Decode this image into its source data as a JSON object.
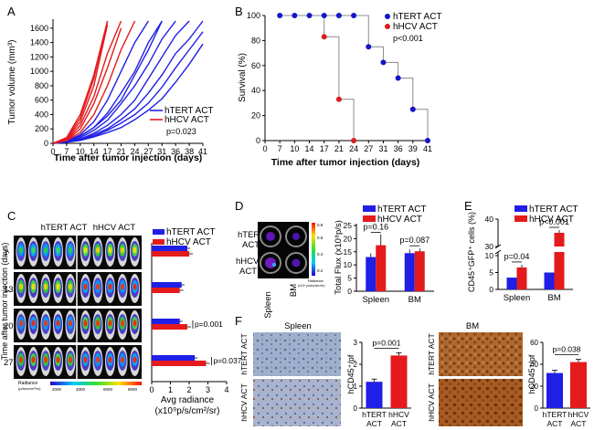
{
  "colors": {
    "blue": "#1f1fe6",
    "red": "#e41a1c",
    "survival_blue": "#1414c8",
    "survival_red": "#d81e1e",
    "axis": "#000000",
    "survival_line": "#8c8c8c"
  },
  "panels": {
    "a": "A",
    "b": "B",
    "c": "C",
    "d": "D",
    "e": "E",
    "f": "F"
  },
  "chart_data": [
    {
      "panel": "A",
      "type": "line",
      "xlabel": "Time after tumor injection (days)",
      "ylabel": "Tumor volume (mm³)",
      "xticks": [
        "0",
        "7",
        "10",
        "14",
        "17",
        "21",
        "24",
        "27",
        "31",
        "36",
        "38",
        "41"
      ],
      "yticks": [
        "0",
        "200",
        "400",
        "600",
        "800",
        "1000",
        "1200",
        "1400",
        "1600"
      ],
      "ylim": [
        0,
        1700
      ],
      "legend": [
        "hTERT ACT",
        "hHCV ACT"
      ],
      "annotation": "p=0.023",
      "series": [
        {
          "name": "hTERT ACT",
          "x": [
            0,
            7,
            10,
            14,
            17,
            21,
            24,
            27
          ],
          "values": [
            0,
            30,
            120,
            300,
            600,
            1000,
            1400,
            1700
          ]
        },
        {
          "name": "hTERT ACT",
          "x": [
            0,
            7,
            10,
            14,
            17,
            21,
            24,
            27,
            31
          ],
          "values": [
            0,
            25,
            100,
            220,
            420,
            700,
            1000,
            1400,
            1700
          ]
        },
        {
          "name": "hTERT ACT",
          "x": [
            0,
            7,
            10,
            14,
            17,
            21,
            24,
            27,
            31,
            36
          ],
          "values": [
            0,
            20,
            80,
            180,
            320,
            550,
            800,
            1100,
            1450,
            1700
          ]
        },
        {
          "name": "hTERT ACT",
          "x": [
            0,
            7,
            10,
            14,
            17,
            21,
            24,
            27,
            31
          ],
          "values": [
            0,
            30,
            100,
            220,
            380,
            600,
            950,
            1300,
            1700
          ]
        },
        {
          "name": "hTERT ACT",
          "x": [
            0,
            7,
            10,
            14,
            17,
            21,
            24,
            27,
            31,
            36,
            38
          ],
          "values": [
            0,
            20,
            60,
            140,
            250,
            400,
            600,
            900,
            1200,
            1500,
            1700
          ]
        },
        {
          "name": "hTERT ACT",
          "x": [
            0,
            7,
            10,
            14,
            17,
            21,
            24,
            27,
            31,
            36,
            38,
            41
          ],
          "values": [
            0,
            15,
            50,
            120,
            200,
            330,
            480,
            700,
            950,
            1250,
            1450,
            1700
          ]
        },
        {
          "name": "hTERT ACT",
          "x": [
            0,
            7,
            10,
            14,
            17,
            21,
            24,
            27,
            31,
            36,
            38,
            41
          ],
          "values": [
            0,
            20,
            60,
            100,
            180,
            280,
            400,
            560,
            780,
            1050,
            1300,
            1550
          ]
        },
        {
          "name": "hTERT ACT",
          "x": [
            0,
            7,
            10,
            14,
            17,
            21,
            24,
            27,
            31,
            36,
            38,
            41
          ],
          "values": [
            0,
            15,
            40,
            90,
            150,
            220,
            330,
            460,
            620,
            850,
            1100,
            1380
          ]
        },
        {
          "name": "hHCV ACT",
          "x": [
            0,
            7,
            10,
            14,
            17
          ],
          "values": [
            0,
            80,
            400,
            950,
            1700
          ]
        },
        {
          "name": "hHCV ACT",
          "x": [
            0,
            7,
            10,
            14,
            17
          ],
          "values": [
            0,
            60,
            300,
            800,
            1650
          ]
        },
        {
          "name": "hHCV ACT",
          "x": [
            0,
            7,
            10,
            14,
            17,
            21
          ],
          "values": [
            0,
            50,
            250,
            650,
            1250,
            1700
          ]
        },
        {
          "name": "hHCV ACT",
          "x": [
            0,
            7,
            10,
            14,
            17,
            21
          ],
          "values": [
            0,
            40,
            200,
            550,
            1050,
            1600
          ]
        },
        {
          "name": "hHCV ACT",
          "x": [
            0,
            7,
            10,
            14,
            17,
            21,
            24
          ],
          "values": [
            0,
            40,
            150,
            400,
            800,
            1300,
            1700
          ]
        },
        {
          "name": "hHCV ACT",
          "x": [
            0,
            7,
            10,
            14,
            17
          ],
          "values": [
            0,
            70,
            350,
            900,
            1700
          ]
        }
      ]
    },
    {
      "panel": "B",
      "type": "line",
      "xlabel": "Time after tumor injection (days)",
      "ylabel": "Survival (%)",
      "xticks": [
        "0",
        "7",
        "10",
        "14",
        "17",
        "21",
        "24",
        "27",
        "31",
        "36",
        "39",
        "41"
      ],
      "yticks": [
        "0",
        "20",
        "40",
        "60",
        "80",
        "100"
      ],
      "ylim": [
        0,
        100
      ],
      "legend": [
        "hTERT ACT",
        "hHCV ACT"
      ],
      "annotation": "p<0.001",
      "series": [
        {
          "name": "hTERT ACT",
          "x": [
            7,
            10,
            14,
            17,
            21,
            24,
            27,
            31,
            36,
            39,
            41
          ],
          "values": [
            100,
            100,
            100,
            100,
            100,
            100,
            75,
            62.5,
            50,
            25,
            0
          ]
        },
        {
          "name": "hHCV ACT",
          "x": [
            17,
            21,
            24
          ],
          "values": [
            83,
            33,
            0
          ]
        }
      ]
    },
    {
      "panel": "C",
      "type": "bar",
      "orientation": "horizontal",
      "column_labels": [
        "hTERT ACT",
        "hHCV ACT"
      ],
      "ylabel": "Time after tumor injection (days)",
      "categories": [
        "7",
        "13",
        "20",
        "27"
      ],
      "xlabel_line1": "Avg radiance",
      "xlabel_line2": "(x10⁹p/s/cm²/sr)",
      "xticks": [
        "0",
        "1",
        "2",
        "3",
        "4"
      ],
      "xlim": [
        0,
        4
      ],
      "legend": [
        "hTERT ACT",
        "hHCV ACT"
      ],
      "annotations": [
        {
          "row": "20",
          "text": "p=0.001"
        },
        {
          "row": "27",
          "text": "p=0.037"
        }
      ],
      "series": [
        {
          "name": "hTERT ACT",
          "values": [
            1.9,
            1.6,
            1.5,
            2.3
          ]
        },
        {
          "name": "hHCV ACT",
          "values": [
            2.0,
            1.5,
            1.9,
            2.9
          ]
        }
      ],
      "colorbar": {
        "title": "Radiance",
        "units": "(p/sec/cm²/sr)",
        "ticks": [
          "2000",
          "4000",
          "6000",
          "8000"
        ]
      }
    },
    {
      "panel": "D",
      "type": "bar",
      "image_labels": [
        "hTERT ACT",
        "hHCV ACT"
      ],
      "image_axis_labels": [
        "Spleen",
        "BM"
      ],
      "colorbar": {
        "ticks": [
          "0.8",
          "0.6",
          "0.4",
          "0.2"
        ],
        "title": "Radiance",
        "units": "(x10⁴ p/sec/cm²/sr)"
      },
      "ylabel": "Total Flux (x10⁸p/s)",
      "categories": [
        "Spleen",
        "BM"
      ],
      "yticks": [
        "0",
        "5",
        "10",
        "15",
        "20",
        "25"
      ],
      "ylim": [
        0,
        25
      ],
      "legend": [
        "hTERT ACT",
        "hHCV ACT"
      ],
      "annotations": [
        "p=0.16",
        "p=0.087"
      ],
      "series": [
        {
          "name": "hTERT ACT",
          "values": [
            13,
            14.5
          ]
        },
        {
          "name": "hHCV ACT",
          "values": [
            17.5,
            15.2
          ]
        }
      ]
    },
    {
      "panel": "E",
      "type": "bar",
      "ylabel": "CD45⁺GFP⁺ cells (%)",
      "categories": [
        "Spleen",
        "BM"
      ],
      "yticks": [
        "0",
        "5",
        "10",
        "30",
        "40"
      ],
      "axis_break": [
        12,
        28
      ],
      "legend": [
        "hTERT ACT",
        "hHCV ACT"
      ],
      "annotations": [
        "p=0.04",
        "p<0.001"
      ],
      "series": [
        {
          "name": "hTERT ACT",
          "values": [
            3.5,
            5.0
          ]
        },
        {
          "name": "hHCV ACT",
          "values": [
            6.5,
            35.0
          ]
        }
      ]
    },
    {
      "panel": "F",
      "type": "bar",
      "spleen_title": "Spleen",
      "bm_title": "BM",
      "image_labels": [
        "hTERT ACT",
        "hHCV ACT"
      ],
      "charts": [
        {
          "ylabel": "hCD45⁺/pf",
          "categories": [
            "hTERT ACT",
            "hHCV ACT"
          ],
          "values": [
            1.2,
            2.4
          ],
          "yticks": [
            "0",
            "1",
            "2",
            "3"
          ],
          "ylim": [
            0,
            3
          ],
          "annotation": "p=0.001"
        },
        {
          "ylabel": "hCD45⁺/pf",
          "categories": [
            "hTERT ACT",
            "hHCV ACT"
          ],
          "values": [
            32,
            42
          ],
          "yticks": [
            "0",
            "20",
            "40",
            "60"
          ],
          "ylim": [
            0,
            60
          ],
          "annotation": "p=0.038"
        }
      ]
    }
  ]
}
